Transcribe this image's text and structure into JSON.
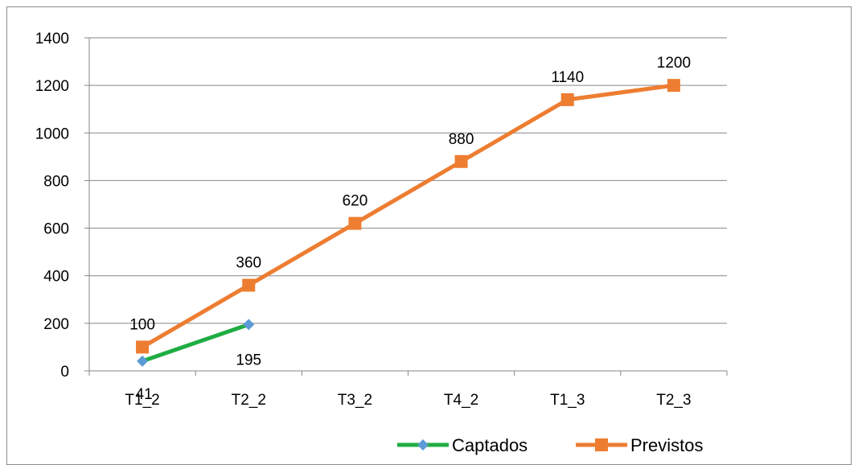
{
  "chart_data": {
    "type": "line",
    "categories": [
      "T1_2",
      "T2_2",
      "T3_2",
      "T4_2",
      "T1_3",
      "T2_3"
    ],
    "ylim": [
      0,
      1400
    ],
    "yticks": [
      0,
      200,
      400,
      600,
      800,
      1000,
      1200,
      1400
    ],
    "grid": true,
    "legend_position": "bottom-right",
    "series": [
      {
        "name": "Captados",
        "values": [
          41,
          195,
          null,
          null,
          null,
          null
        ],
        "labels": [
          "41",
          "195"
        ],
        "color": "#1fad43",
        "marker_color": "#5b9bd5",
        "marker": "diamond"
      },
      {
        "name": "Previstos",
        "values": [
          100,
          360,
          620,
          880,
          1140,
          1200
        ],
        "labels": [
          "100",
          "360",
          "620",
          "880",
          "1140",
          "1200"
        ],
        "color": "#ed7d31",
        "marker_color": "#ed7d31",
        "marker": "square"
      }
    ]
  }
}
